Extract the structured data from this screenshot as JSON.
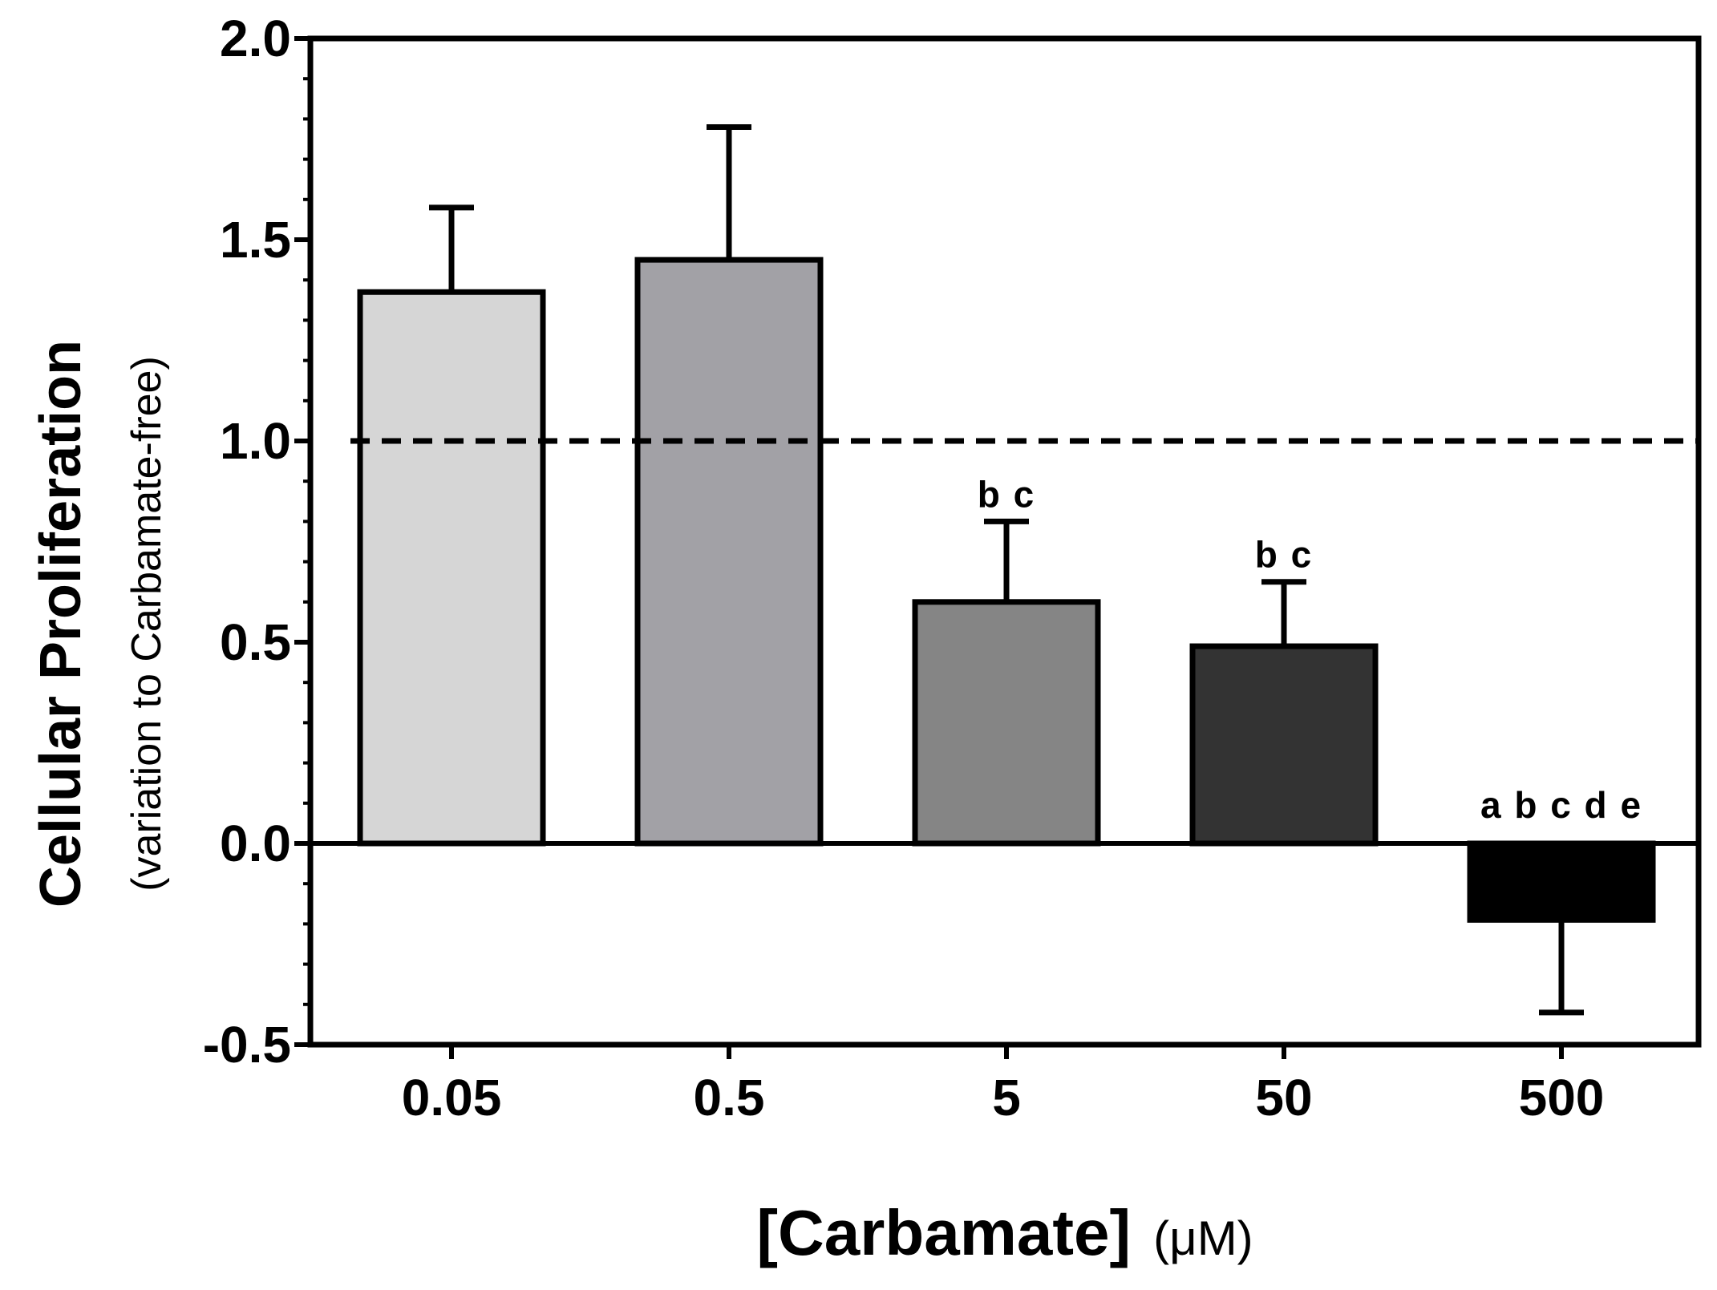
{
  "chart_data": {
    "type": "bar",
    "categories": [
      "0.05",
      "0.5",
      "5",
      "50",
      "500"
    ],
    "values": [
      1.37,
      1.45,
      0.6,
      0.49,
      -0.19
    ],
    "errors": [
      0.21,
      0.33,
      0.2,
      0.16,
      0.23
    ],
    "bar_colors": [
      "#d6d6d6",
      "#a2a1a6",
      "#858585",
      "#333333",
      "#000000"
    ],
    "significance": [
      "",
      "",
      "b c",
      "b c",
      "a b c d e"
    ],
    "ylabel": "Cellular Proliferation",
    "ylabel_sub": "(variation to Carbamate-free)",
    "xlabel": "[Carbamate]",
    "xlabel_unit": "(μM)",
    "ylim": [
      -0.5,
      2.0
    ],
    "yticks": [
      "2.0",
      "1.5",
      "1.0",
      "0.5",
      "0.0",
      "-0.5"
    ],
    "reference_line": 1.0,
    "grid": false,
    "legend": "none"
  }
}
